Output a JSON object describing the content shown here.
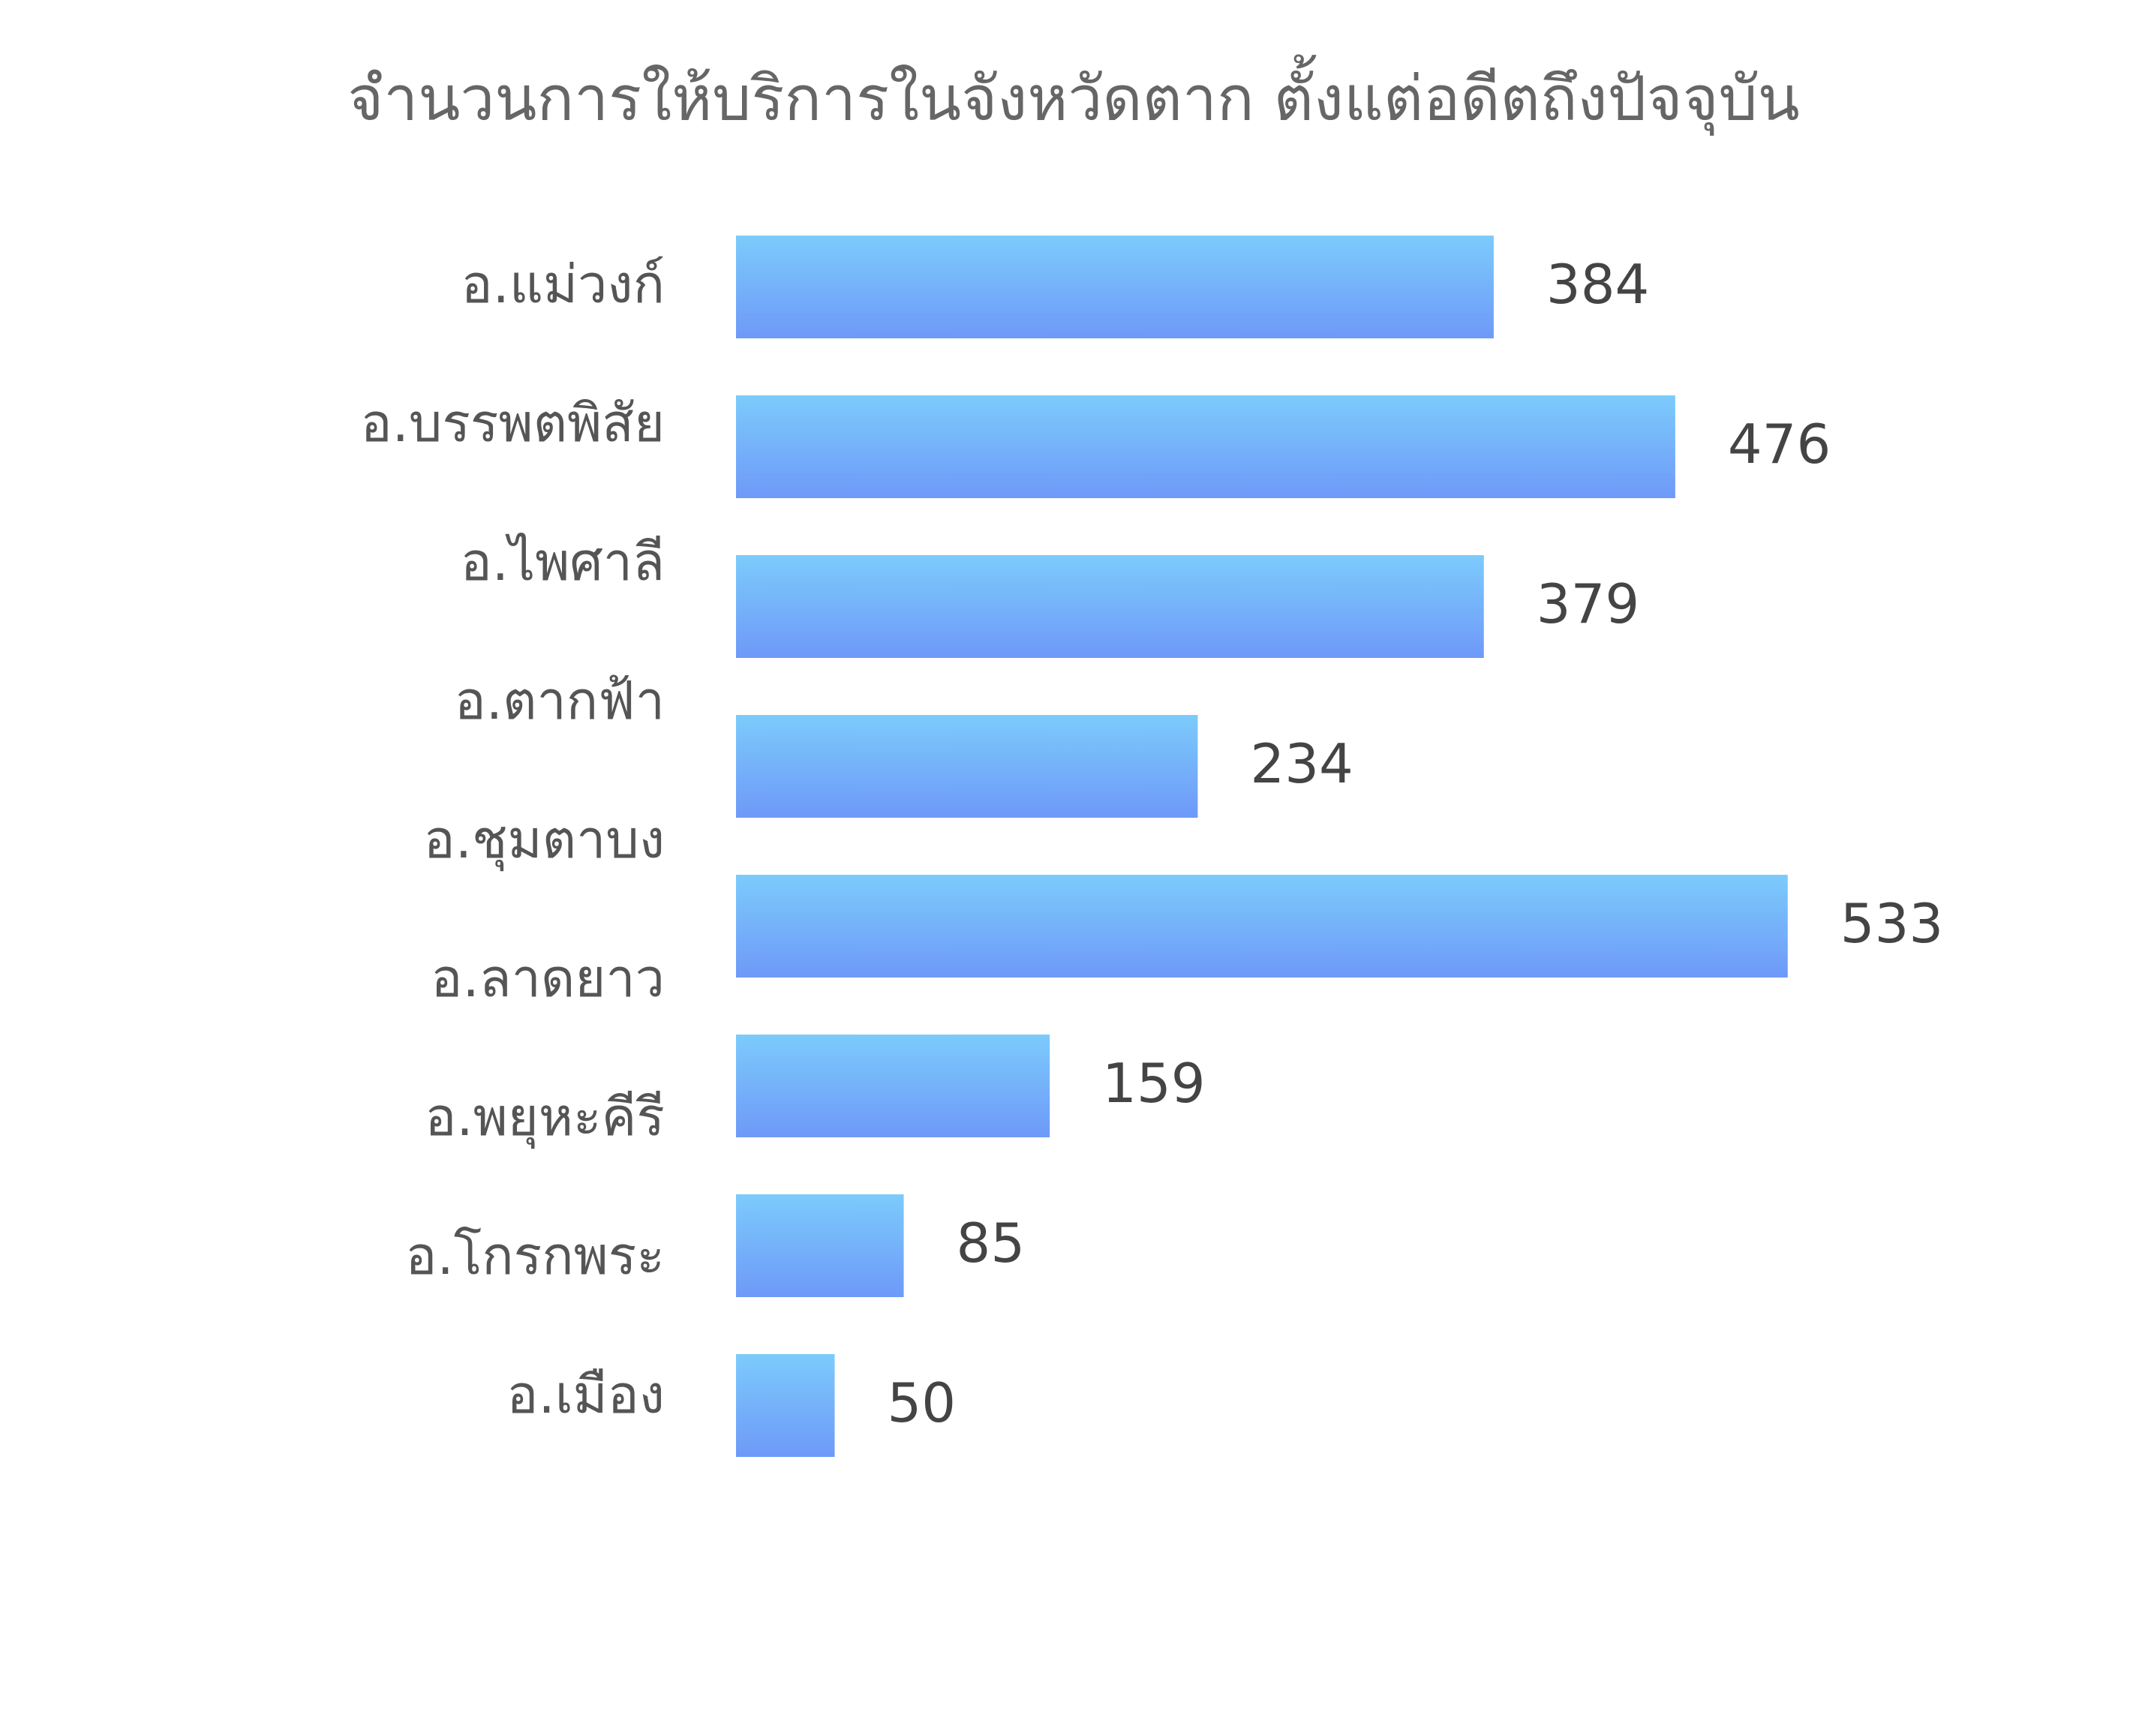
{
  "chart_data": {
    "type": "bar",
    "orientation": "horizontal",
    "title": "จำนวนการให้บริการในจังหวัดตาก ตั้งแต่อดีตถึงปัจจุบัน",
    "categories": [
      "อ.แม่วงก์",
      "อ.บรรพตพิสัย",
      "อ.ไพศาลี",
      "อ.ตากฟ้า",
      "อ.ชุมตาบง",
      "อ.ลาดยาว",
      "อ.พยุหะคีรี",
      "อ.โกรกพระ",
      "อ.เมือง"
    ],
    "values": [
      384,
      476,
      379,
      234,
      null,
      533,
      159,
      85,
      50
    ],
    "gradient": [
      "#7ccbfc",
      "#6e99f8"
    ]
  }
}
